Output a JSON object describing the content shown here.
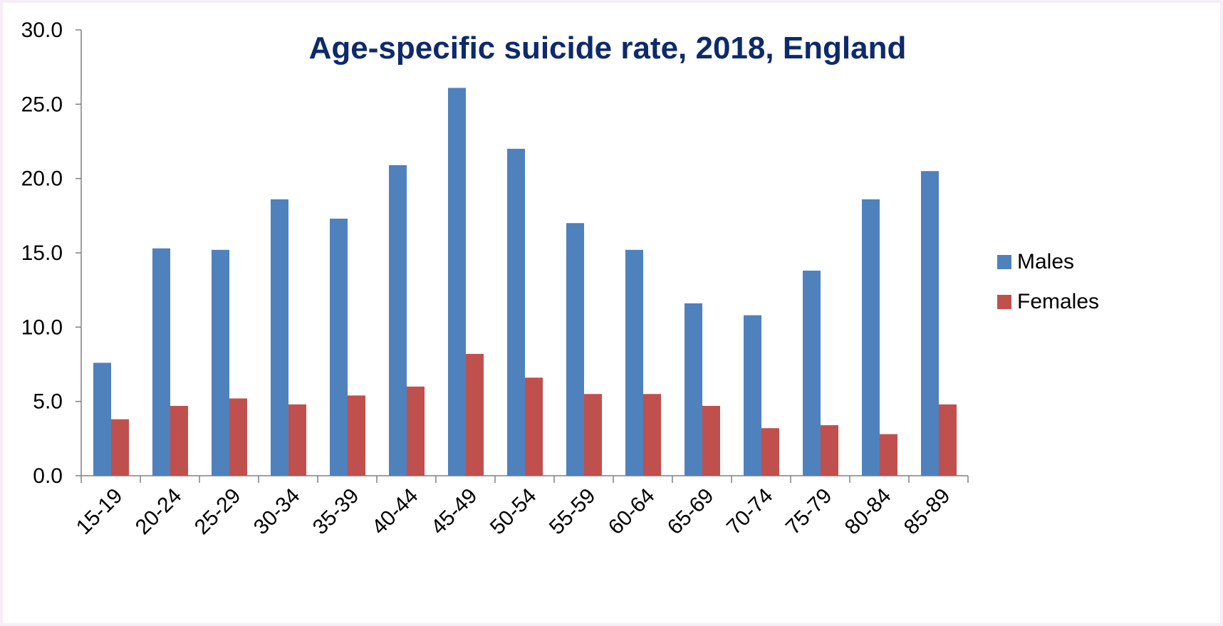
{
  "chart_data": {
    "type": "bar",
    "title": "Age-specific suicide rate, 2018, England",
    "xlabel": "",
    "ylabel": "",
    "categories": [
      "15-19",
      "20-24",
      "25-29",
      "30-34",
      "35-39",
      "40-44",
      "45-49",
      "50-54",
      "55-59",
      "60-64",
      "65-69",
      "70-74",
      "75-79",
      "80-84",
      "85-89"
    ],
    "series": [
      {
        "name": "Males",
        "color": "#4f81bd",
        "values": [
          7.6,
          15.3,
          15.2,
          18.6,
          17.3,
          20.9,
          26.1,
          22.0,
          17.0,
          15.2,
          11.6,
          10.8,
          13.8,
          18.6,
          20.5
        ]
      },
      {
        "name": "Females",
        "color": "#c0504d",
        "values": [
          3.8,
          4.7,
          5.2,
          4.8,
          5.4,
          6.0,
          8.2,
          6.6,
          5.5,
          5.5,
          4.7,
          3.2,
          3.4,
          2.8,
          4.8
        ]
      }
    ],
    "ylim": [
      0,
      30
    ],
    "yticks": [
      "0.0",
      "5.0",
      "10.0",
      "15.0",
      "20.0",
      "25.0",
      "30.0"
    ],
    "grid": false,
    "legend_position": "right",
    "title_color": "#0d2a6b",
    "axis_color": "#808080"
  }
}
